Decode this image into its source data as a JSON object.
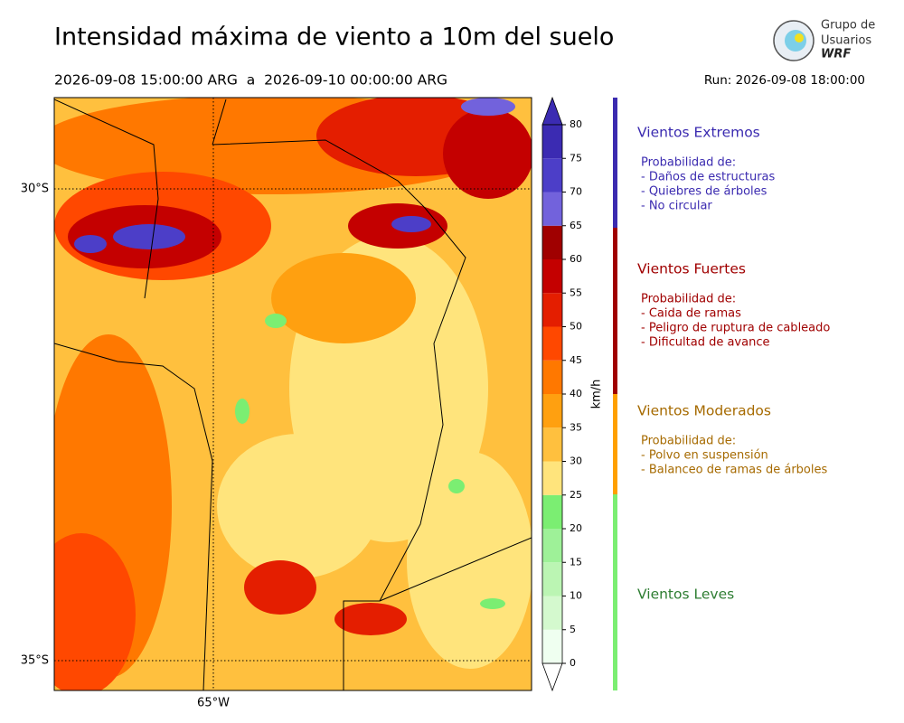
{
  "header": {
    "title": "Intensidad máxima de viento a 10m del suelo",
    "period": "2026-09-08 15:00:00 ARG  a  2026-09-10 00:00:00 ARG",
    "run": "Run: 2026-09-08 18:00:00",
    "logo": [
      "Grupo de",
      "Usuarios",
      "WRF"
    ]
  },
  "map": {
    "lat_labels": [
      "30°S",
      "35°S"
    ],
    "lon_labels": [
      "65°W"
    ]
  },
  "colorbar": {
    "label": "km/h",
    "ticks": [
      0,
      5,
      10,
      15,
      20,
      25,
      30,
      35,
      40,
      45,
      50,
      55,
      60,
      65,
      70,
      75,
      80
    ],
    "colors": [
      "#effff0",
      "#d4f9ce",
      "#bbf5b3",
      "#9ef198",
      "#7bee72",
      "#ffe47c",
      "#ffc03e",
      "#ffa010",
      "#ff7800",
      "#ff4800",
      "#e41e00",
      "#c40000",
      "#a00000",
      "#7262dc",
      "#4c3ec8",
      "#3b2bb2"
    ],
    "extend_colors": [
      "#ffffff",
      "#3b2bb2"
    ]
  },
  "legend": [
    {
      "title": "Vientos Extremos",
      "color": "#3b2bb0",
      "line_color": "#3b2bb0",
      "intro": "Probabilidad de:",
      "items": [
        "- Daños de estructuras",
        "- Quiebres de árboles",
        "- No circular"
      ]
    },
    {
      "title": "Vientos Fuertes",
      "color": "#a00000",
      "line_color": "#a00000",
      "intro": "Probabilidad de:",
      "items": [
        "- Caida de ramas",
        "- Peligro de ruptura de cableado",
        "- Dificultad de avance"
      ]
    },
    {
      "title": "Vientos Moderados",
      "color": "#a66a00",
      "line_color": "#ffa000",
      "intro": "Probabilidad de:",
      "items": [
        "- Polvo en suspensión",
        "- Balanceo de ramas de árboles"
      ]
    },
    {
      "title": "Vientos Leves",
      "color": "#2e7d32",
      "line_color": "#7bee72"
    }
  ]
}
